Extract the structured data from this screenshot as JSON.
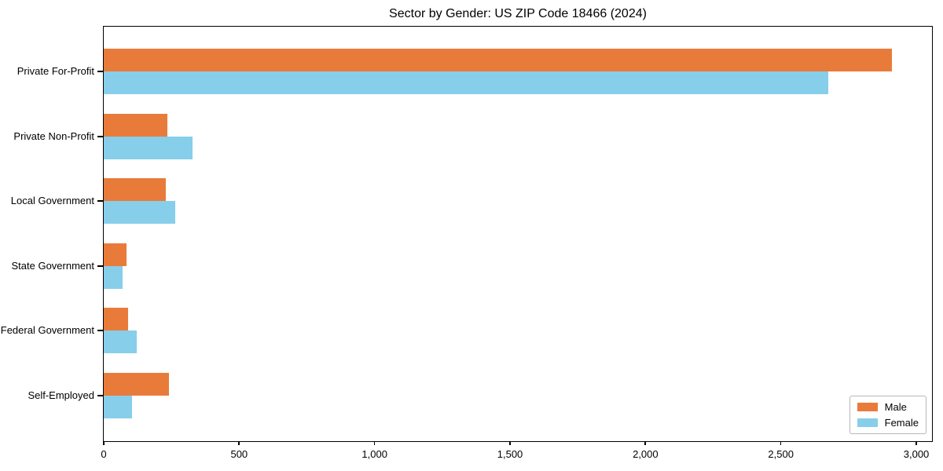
{
  "chart_data": {
    "type": "bar",
    "orientation": "horizontal",
    "title": "Sector by Gender: US ZIP Code 18466 (2024)",
    "xlabel": "",
    "ylabel": "",
    "categories": [
      "Private For-Profit",
      "Private Non-Profit",
      "Local Government",
      "State Government",
      "Federal Government",
      "Self-Employed"
    ],
    "series": [
      {
        "name": "Male",
        "color": "#e97b3a",
        "values": [
          2910,
          235,
          230,
          85,
          89,
          241
        ]
      },
      {
        "name": "Female",
        "color": "#87ceeb",
        "values": [
          2675,
          327,
          265,
          71,
          122,
          104
        ]
      }
    ],
    "xlim": [
      0,
      3055
    ],
    "xticks": [
      0,
      500,
      1000,
      1500,
      2000,
      2500,
      3000
    ],
    "xtick_labels": [
      "0",
      "500",
      "1,000",
      "1,500",
      "2,000",
      "2,500",
      "3,000"
    ],
    "grid": false,
    "legend_position": "lower right",
    "axis_color": "#000000",
    "background_color": "#ffffff"
  }
}
